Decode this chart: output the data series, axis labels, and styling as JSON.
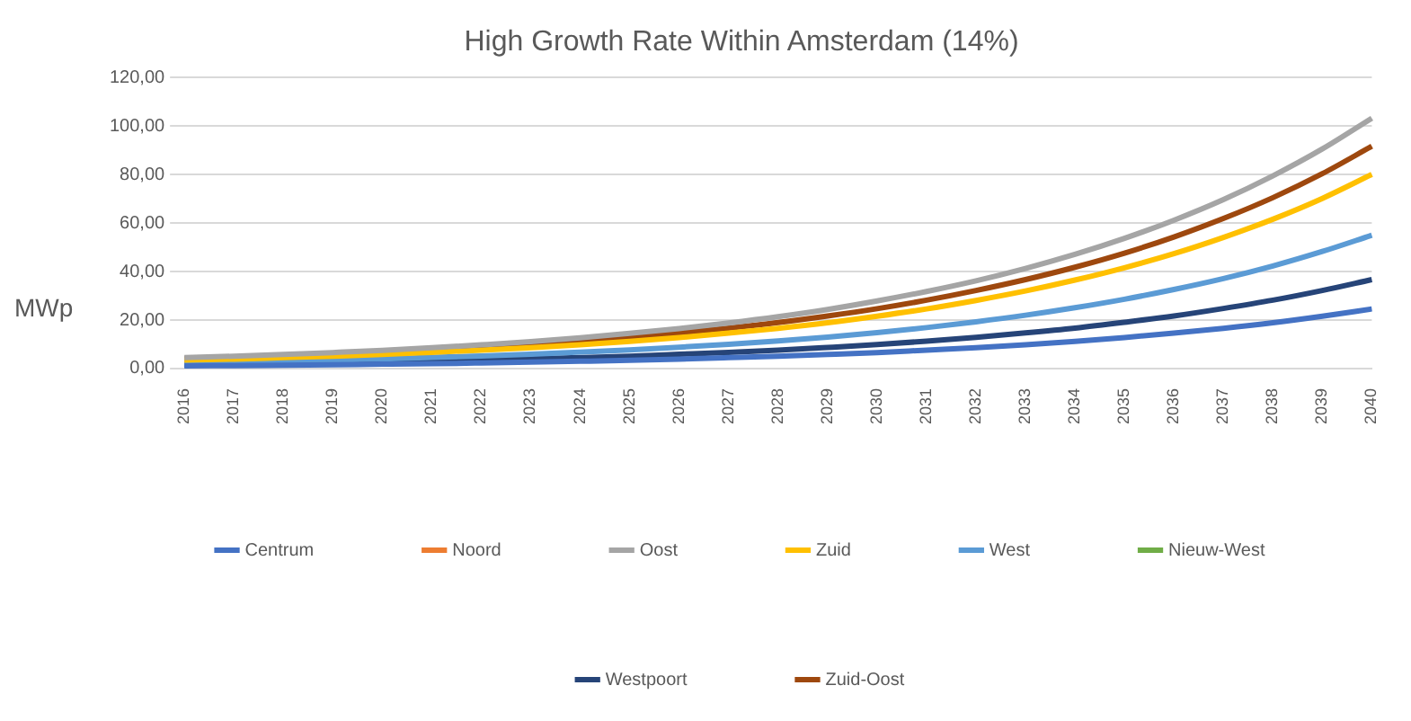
{
  "chart_data": {
    "type": "line",
    "title": "High Growth Rate Within Amsterdam (14%)",
    "ylabel": "MWp",
    "categories": [
      "2016",
      "2017",
      "2018",
      "2019",
      "2020",
      "2021",
      "2022",
      "2023",
      "2024",
      "2025",
      "2026",
      "2027",
      "2028",
      "2029",
      "2030",
      "2031",
      "2032",
      "2033",
      "2034",
      "2035",
      "2036",
      "2037",
      "2038",
      "2039",
      "2040"
    ],
    "series": [
      {
        "name": "Centrum",
        "color": "#4472c4",
        "values": [
          1.1,
          1.2,
          1.4,
          1.6,
          1.8,
          2.0,
          2.3,
          2.7,
          3.0,
          3.4,
          3.9,
          4.5,
          5.1,
          5.8,
          6.6,
          7.6,
          8.6,
          9.8,
          11.2,
          12.8,
          14.6,
          16.6,
          18.9,
          21.6,
          24.6
        ]
      },
      {
        "name": "Noord",
        "color": "#ed7d31",
        "values": [
          null,
          null,
          null,
          null,
          null,
          null,
          null,
          null,
          null,
          null,
          null,
          null,
          null,
          null,
          null,
          null,
          null,
          null,
          null,
          null,
          null,
          null,
          null,
          null,
          null
        ]
      },
      {
        "name": "Oost",
        "color": "#a5a5a5",
        "values": [
          4.5,
          5.1,
          5.8,
          6.6,
          7.5,
          8.6,
          9.8,
          11.1,
          12.7,
          14.5,
          16.5,
          18.8,
          21.4,
          24.4,
          27.9,
          31.8,
          36.2,
          41.3,
          47.1,
          53.7,
          61.2,
          69.7,
          79.5,
          90.6,
          103.3
        ]
      },
      {
        "name": "Zuid",
        "color": "#ffc000",
        "values": [
          3.5,
          3.9,
          4.5,
          5.1,
          5.8,
          6.7,
          7.6,
          8.6,
          9.8,
          11.2,
          12.8,
          14.6,
          16.6,
          18.9,
          21.6,
          24.6,
          28.1,
          32.0,
          36.5,
          41.6,
          47.4,
          54.1,
          61.6,
          70.2,
          80.1
        ]
      },
      {
        "name": "West",
        "color": "#5b9bd5",
        "values": [
          2.4,
          2.7,
          3.1,
          3.5,
          4.0,
          4.6,
          5.2,
          5.9,
          6.8,
          7.7,
          8.8,
          10.0,
          11.4,
          13.0,
          14.8,
          16.9,
          19.3,
          22.0,
          25.1,
          28.6,
          32.6,
          37.1,
          42.3,
          48.3,
          55.0
        ]
      },
      {
        "name": "Nieuw-West",
        "color": "#70ad47",
        "values": [
          null,
          null,
          null,
          null,
          null,
          null,
          null,
          null,
          null,
          null,
          null,
          null,
          null,
          null,
          null,
          null,
          null,
          null,
          null,
          null,
          null,
          null,
          null,
          null,
          null
        ]
      },
      {
        "name": "Westpoort",
        "color": "#264478",
        "values": [
          1.6,
          1.8,
          2.1,
          2.3,
          2.7,
          3.0,
          3.5,
          4.0,
          4.5,
          5.1,
          5.9,
          6.7,
          7.6,
          8.7,
          9.9,
          11.3,
          12.9,
          14.7,
          16.7,
          19.1,
          21.7,
          24.8,
          28.2,
          32.2,
          36.7
        ]
      },
      {
        "name": "Zuid-Oost",
        "color": "#9e480e",
        "values": [
          4.0,
          4.5,
          5.1,
          5.8,
          6.7,
          7.6,
          8.7,
          9.9,
          11.3,
          12.8,
          14.7,
          16.7,
          19.0,
          21.7,
          24.7,
          28.2,
          32.2,
          36.7,
          41.8,
          47.6,
          54.3,
          61.9,
          70.5,
          80.4,
          91.7
        ]
      }
    ],
    "ylim": [
      0,
      120
    ],
    "yticks": [
      {
        "value": 0,
        "label": "0,00"
      },
      {
        "value": 20,
        "label": "20,00"
      },
      {
        "value": 40,
        "label": "40,00"
      },
      {
        "value": 60,
        "label": "60,00"
      },
      {
        "value": 80,
        "label": "80,00"
      },
      {
        "value": 100,
        "label": "100,00"
      },
      {
        "value": 120,
        "label": "120,00"
      }
    ],
    "grid": "y",
    "legend": "bottom",
    "marker": "none",
    "line_style": "solid"
  }
}
